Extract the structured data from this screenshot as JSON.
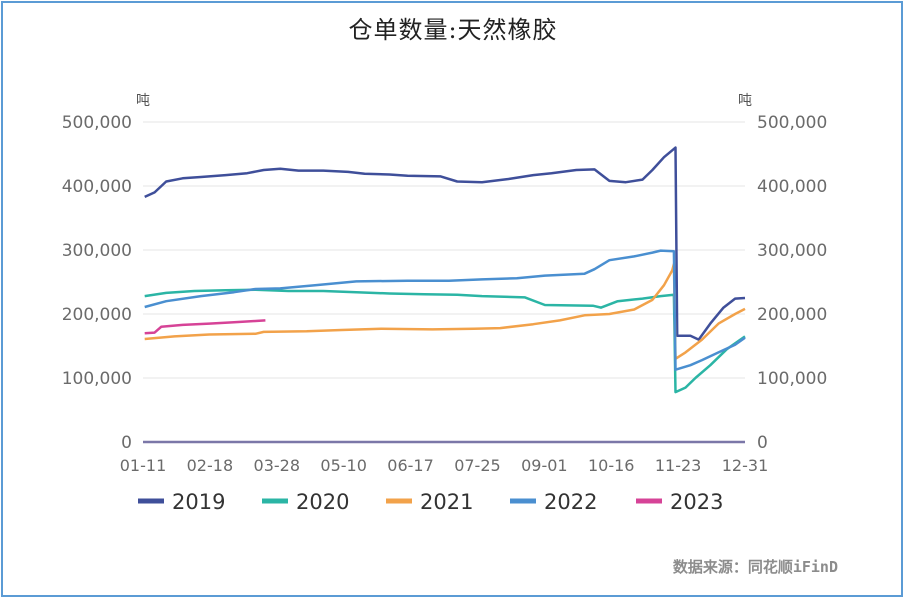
{
  "chart_data": {
    "type": "line",
    "title": "仓单数量:天然橡胶",
    "unit_left": "吨",
    "unit_right": "吨",
    "x_tick_labels": [
      "01-11",
      "02-18",
      "03-28",
      "05-10",
      "06-17",
      "07-25",
      "09-01",
      "10-16",
      "11-23",
      "12-31"
    ],
    "y_tick_labels": [
      "0",
      "100,000",
      "200,000",
      "300,000",
      "400,000",
      "500,000"
    ],
    "ylim": [
      0,
      500000
    ],
    "grid": true,
    "legend_position": "bottom",
    "series": [
      {
        "name": "2019",
        "color": "#3f4f9a",
        "points": [
          [
            "01-02",
            383000
          ],
          [
            "01-08",
            390000
          ],
          [
            "01-15",
            407000
          ],
          [
            "01-25",
            412000
          ],
          [
            "02-05",
            414000
          ],
          [
            "02-20",
            417000
          ],
          [
            "03-05",
            420000
          ],
          [
            "03-15",
            425000
          ],
          [
            "03-25",
            427000
          ],
          [
            "04-05",
            424000
          ],
          [
            "04-20",
            424000
          ],
          [
            "05-05",
            422000
          ],
          [
            "05-15",
            419000
          ],
          [
            "05-30",
            418000
          ],
          [
            "06-10",
            416000
          ],
          [
            "06-30",
            415000
          ],
          [
            "07-10",
            407000
          ],
          [
            "07-25",
            406000
          ],
          [
            "08-10",
            411000
          ],
          [
            "08-25",
            417000
          ],
          [
            "09-05",
            420000
          ],
          [
            "09-20",
            425000
          ],
          [
            "10-01",
            426000
          ],
          [
            "10-10",
            408000
          ],
          [
            "10-20",
            406000
          ],
          [
            "10-30",
            410000
          ],
          [
            "11-05",
            425000
          ],
          [
            "11-12",
            445000
          ],
          [
            "11-18",
            458000
          ],
          [
            "11-19",
            460000
          ],
          [
            "11-20",
            166000
          ],
          [
            "11-28",
            166000
          ],
          [
            "12-03",
            160000
          ],
          [
            "12-10",
            185000
          ],
          [
            "12-18",
            210000
          ],
          [
            "12-25",
            224000
          ],
          [
            "12-31",
            225000
          ]
        ]
      },
      {
        "name": "2020",
        "color": "#2bb5a5",
        "points": [
          [
            "01-02",
            228000
          ],
          [
            "01-15",
            233000
          ],
          [
            "02-01",
            236000
          ],
          [
            "02-20",
            237000
          ],
          [
            "03-10",
            238000
          ],
          [
            "03-30",
            236000
          ],
          [
            "04-20",
            236000
          ],
          [
            "05-10",
            234000
          ],
          [
            "05-30",
            232000
          ],
          [
            "06-20",
            231000
          ],
          [
            "07-10",
            230000
          ],
          [
            "07-25",
            228000
          ],
          [
            "08-20",
            226000
          ],
          [
            "09-01",
            214000
          ],
          [
            "09-30",
            213000
          ],
          [
            "10-05",
            210000
          ],
          [
            "10-15",
            220000
          ],
          [
            "10-30",
            224000
          ],
          [
            "11-10",
            228000
          ],
          [
            "11-18",
            230000
          ],
          [
            "11-19",
            78000
          ],
          [
            "11-25",
            85000
          ],
          [
            "12-01",
            100000
          ],
          [
            "12-10",
            120000
          ],
          [
            "12-20",
            145000
          ],
          [
            "12-31",
            165000
          ]
        ]
      },
      {
        "name": "2021",
        "color": "#f2a24a",
        "points": [
          [
            "01-02",
            161000
          ],
          [
            "01-20",
            165000
          ],
          [
            "02-10",
            168000
          ],
          [
            "03-10",
            169000
          ],
          [
            "03-15",
            172000
          ],
          [
            "04-10",
            173000
          ],
          [
            "05-01",
            175000
          ],
          [
            "05-25",
            177000
          ],
          [
            "06-25",
            176000
          ],
          [
            "07-20",
            177000
          ],
          [
            "08-05",
            178000
          ],
          [
            "08-25",
            184000
          ],
          [
            "09-10",
            190000
          ],
          [
            "09-25",
            198000
          ],
          [
            "10-10",
            200000
          ],
          [
            "10-25",
            207000
          ],
          [
            "11-05",
            222000
          ],
          [
            "11-12",
            245000
          ],
          [
            "11-17",
            268000
          ],
          [
            "11-18",
            278000
          ],
          [
            "11-19",
            130000
          ],
          [
            "11-25",
            140000
          ],
          [
            "12-05",
            160000
          ],
          [
            "12-15",
            185000
          ],
          [
            "12-25",
            200000
          ],
          [
            "12-31",
            208000
          ]
        ]
      },
      {
        "name": "2022",
        "color": "#4a8fd0",
        "points": [
          [
            "01-02",
            211000
          ],
          [
            "01-15",
            220000
          ],
          [
            "02-05",
            228000
          ],
          [
            "02-25",
            234000
          ],
          [
            "03-10",
            239000
          ],
          [
            "03-25",
            240000
          ],
          [
            "04-15",
            245000
          ],
          [
            "05-10",
            251000
          ],
          [
            "06-10",
            252000
          ],
          [
            "07-05",
            252000
          ],
          [
            "07-25",
            254000
          ],
          [
            "08-15",
            256000
          ],
          [
            "09-01",
            260000
          ],
          [
            "09-25",
            263000
          ],
          [
            "10-01",
            270000
          ],
          [
            "10-10",
            284000
          ],
          [
            "10-25",
            290000
          ],
          [
            "11-05",
            296000
          ],
          [
            "11-10",
            299000
          ],
          [
            "11-18",
            298000
          ],
          [
            "11-19",
            113000
          ],
          [
            "11-28",
            120000
          ],
          [
            "12-05",
            128000
          ],
          [
            "12-15",
            140000
          ],
          [
            "12-25",
            152000
          ],
          [
            "12-31",
            163000
          ]
        ]
      },
      {
        "name": "2023",
        "color": "#d64397",
        "points": [
          [
            "01-02",
            170000
          ],
          [
            "01-08",
            171000
          ],
          [
            "01-12",
            180000
          ],
          [
            "01-25",
            183000
          ],
          [
            "02-10",
            185000
          ],
          [
            "02-25",
            187000
          ],
          [
            "03-10",
            189000
          ],
          [
            "03-16",
            190000
          ]
        ]
      }
    ]
  },
  "source_text": "数据来源：同花顺iFinD"
}
